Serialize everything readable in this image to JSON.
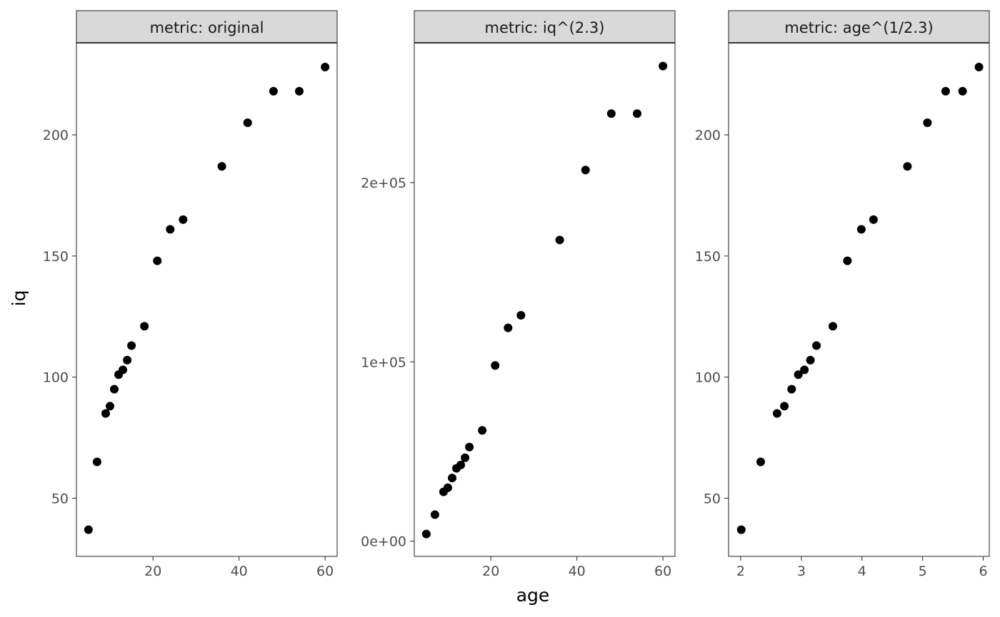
{
  "chart_data": {
    "type": "scatter",
    "xlabel": "age",
    "ylabel": "iq",
    "facet_strip_label": "metric",
    "grid": false,
    "panels": [
      {
        "strip": "metric: original",
        "xlim": [
          2.2,
          62.8
        ],
        "ylim": [
          26,
          238
        ],
        "xticks": [
          20,
          40,
          60
        ],
        "xtick_labels": [
          "20",
          "40",
          "60"
        ],
        "yticks": [
          50,
          100,
          150,
          200
        ],
        "ytick_labels": [
          "50",
          "100",
          "150",
          "200"
        ],
        "points": [
          {
            "x": 5,
            "y": 37
          },
          {
            "x": 7,
            "y": 65
          },
          {
            "x": 9,
            "y": 85
          },
          {
            "x": 10,
            "y": 88
          },
          {
            "x": 11,
            "y": 95
          },
          {
            "x": 12,
            "y": 101
          },
          {
            "x": 13,
            "y": 103
          },
          {
            "x": 14,
            "y": 107
          },
          {
            "x": 15,
            "y": 113
          },
          {
            "x": 18,
            "y": 121
          },
          {
            "x": 21,
            "y": 148
          },
          {
            "x": 24,
            "y": 161
          },
          {
            "x": 27,
            "y": 165
          },
          {
            "x": 36,
            "y": 187
          },
          {
            "x": 42,
            "y": 205
          },
          {
            "x": 48,
            "y": 218
          },
          {
            "x": 54,
            "y": 218
          },
          {
            "x": 60,
            "y": 228
          }
        ]
      },
      {
        "strip": "metric: iq^(2.3)",
        "xlim": [
          2.2,
          62.8
        ],
        "ylim": [
          -8500,
          278000
        ],
        "xticks": [
          20,
          40,
          60
        ],
        "xtick_labels": [
          "20",
          "40",
          "60"
        ],
        "yticks": [
          0,
          100000,
          200000
        ],
        "ytick_labels": [
          "0e+00",
          "1e+05",
          "2e+05"
        ],
        "points": [
          {
            "x": 5,
            "y": 4000
          },
          {
            "x": 7,
            "y": 14800
          },
          {
            "x": 9,
            "y": 27500
          },
          {
            "x": 10,
            "y": 29800
          },
          {
            "x": 11,
            "y": 35200
          },
          {
            "x": 12,
            "y": 40600
          },
          {
            "x": 13,
            "y": 42500
          },
          {
            "x": 14,
            "y": 46500
          },
          {
            "x": 15,
            "y": 52500
          },
          {
            "x": 18,
            "y": 61800
          },
          {
            "x": 21,
            "y": 98000
          },
          {
            "x": 24,
            "y": 119000
          },
          {
            "x": 27,
            "y": 126000
          },
          {
            "x": 36,
            "y": 168000
          },
          {
            "x": 42,
            "y": 207000
          },
          {
            "x": 48,
            "y": 238500
          },
          {
            "x": 54,
            "y": 238500
          },
          {
            "x": 60,
            "y": 265000
          }
        ]
      },
      {
        "strip": "metric: age^(1/2.3)",
        "xlim": [
          1.8,
          6.1
        ],
        "ylim": [
          26,
          238
        ],
        "xticks": [
          2,
          3,
          4,
          5,
          6
        ],
        "xtick_labels": [
          "2",
          "3",
          "4",
          "5",
          "6"
        ],
        "yticks": [
          50,
          100,
          150,
          200
        ],
        "ytick_labels": [
          "50",
          "100",
          "150",
          "200"
        ],
        "points": [
          {
            "x": 2.01,
            "y": 37
          },
          {
            "x": 2.33,
            "y": 65
          },
          {
            "x": 2.6,
            "y": 85
          },
          {
            "x": 2.72,
            "y": 88
          },
          {
            "x": 2.84,
            "y": 95
          },
          {
            "x": 2.95,
            "y": 101
          },
          {
            "x": 3.05,
            "y": 103
          },
          {
            "x": 3.15,
            "y": 107
          },
          {
            "x": 3.25,
            "y": 113
          },
          {
            "x": 3.52,
            "y": 121
          },
          {
            "x": 3.76,
            "y": 148
          },
          {
            "x": 3.99,
            "y": 161
          },
          {
            "x": 4.19,
            "y": 165
          },
          {
            "x": 4.75,
            "y": 187
          },
          {
            "x": 5.08,
            "y": 205
          },
          {
            "x": 5.38,
            "y": 218
          },
          {
            "x": 5.66,
            "y": 218
          },
          {
            "x": 5.93,
            "y": 228
          }
        ]
      }
    ]
  }
}
